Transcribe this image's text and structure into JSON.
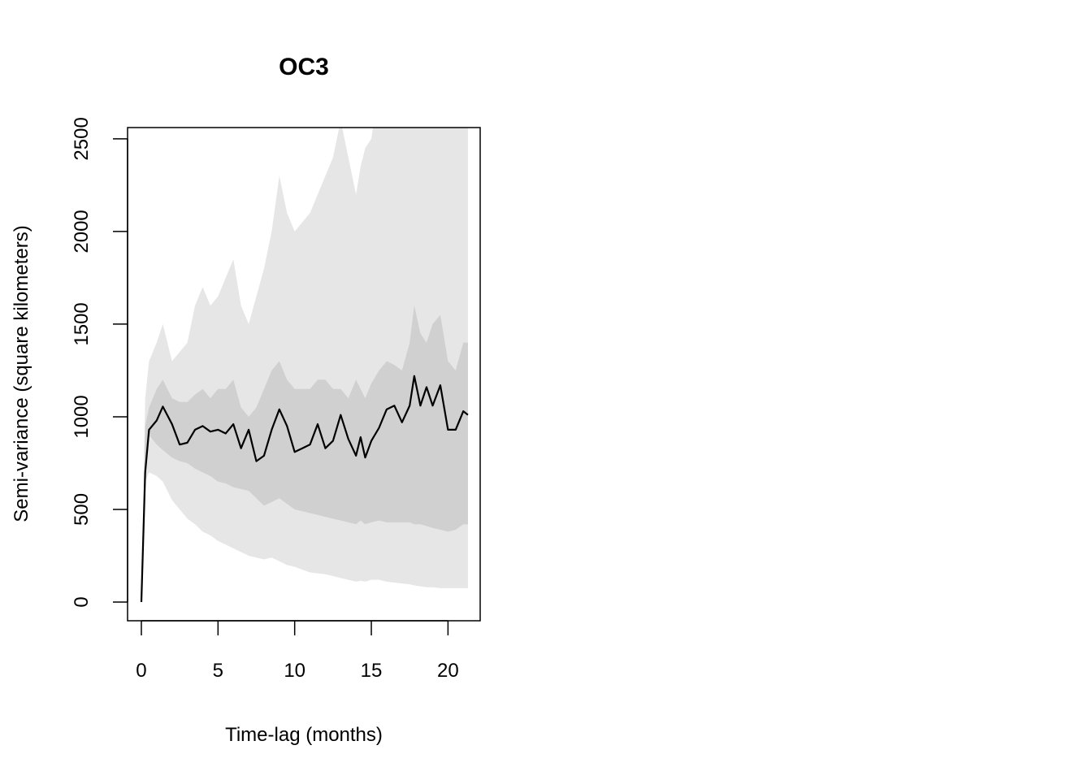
{
  "chart_data": {
    "type": "line",
    "title": "OC3",
    "xlabel": "Time-lag (months)",
    "ylabel": "Semi-variance (square kilometers)",
    "x": [
      0,
      0.25,
      0.5,
      1,
      1.4,
      2,
      2.5,
      3,
      3.5,
      4,
      4.5,
      5,
      5.5,
      6,
      6.5,
      7,
      7.5,
      8,
      8.5,
      9,
      9.5,
      10,
      10.5,
      11,
      11.5,
      12,
      12.5,
      13,
      13.5,
      14,
      14.3,
      14.6,
      15,
      15.5,
      16,
      16.5,
      17,
      17.5,
      17.8,
      18.2,
      18.6,
      19,
      19.5,
      20,
      20.5,
      21,
      21.3
    ],
    "values": [
      0,
      700,
      930,
      980,
      1055,
      960,
      850,
      860,
      930,
      950,
      920,
      930,
      910,
      960,
      830,
      930,
      760,
      790,
      930,
      1040,
      950,
      810,
      830,
      850,
      960,
      830,
      870,
      1010,
      880,
      790,
      890,
      780,
      870,
      940,
      1040,
      1060,
      970,
      1060,
      1220,
      1060,
      1160,
      1060,
      1170,
      930,
      930,
      1030,
      1010
    ],
    "color": "#000000",
    "bands": [
      {
        "color": "#e6e6e6",
        "upper": [
          0,
          1100,
          1300,
          1400,
          1500,
          1300,
          1350,
          1400,
          1600,
          1700,
          1600,
          1650,
          1750,
          1850,
          1600,
          1500,
          1650,
          1800,
          2000,
          2300,
          2100,
          2000,
          2050,
          2100,
          2200,
          2300,
          2400,
          2600,
          2400,
          2200,
          2350,
          2450,
          2500,
          2800,
          2900,
          3000,
          3000,
          3000,
          3000,
          3000,
          3000,
          3000,
          3000,
          3000,
          3000,
          3000,
          3000
        ],
        "lower": [
          0,
          650,
          700,
          680,
          650,
          550,
          500,
          450,
          420,
          380,
          360,
          330,
          310,
          290,
          270,
          250,
          240,
          230,
          240,
          220,
          200,
          190,
          175,
          160,
          155,
          150,
          140,
          130,
          120,
          110,
          115,
          110,
          120,
          120,
          110,
          105,
          100,
          95,
          90,
          85,
          80,
          80,
          75,
          75,
          75,
          75,
          75
        ]
      },
      {
        "color": "#d0d0d0",
        "upper": [
          0,
          950,
          1050,
          1150,
          1200,
          1100,
          1080,
          1080,
          1120,
          1150,
          1100,
          1150,
          1150,
          1200,
          1050,
          1000,
          1050,
          1150,
          1250,
          1300,
          1200,
          1150,
          1150,
          1150,
          1200,
          1200,
          1150,
          1150,
          1100,
          1200,
          1150,
          1100,
          1180,
          1250,
          1300,
          1280,
          1250,
          1400,
          1600,
          1450,
          1400,
          1500,
          1550,
          1300,
          1250,
          1400,
          1400
        ],
        "lower": [
          0,
          750,
          900,
          850,
          820,
          780,
          760,
          750,
          720,
          700,
          680,
          650,
          640,
          620,
          610,
          600,
          560,
          520,
          540,
          560,
          530,
          500,
          490,
          480,
          470,
          460,
          450,
          440,
          430,
          420,
          440,
          420,
          430,
          440,
          430,
          430,
          430,
          430,
          420,
          420,
          410,
          400,
          390,
          380,
          390,
          420,
          420
        ]
      }
    ],
    "xlim": [
      -0.9,
      22.1
    ],
    "ylim": [
      -101,
      2561
    ],
    "xticks": [
      0,
      5,
      10,
      15,
      20
    ],
    "yticks": [
      0,
      500,
      1000,
      1500,
      2000,
      2500
    ]
  }
}
